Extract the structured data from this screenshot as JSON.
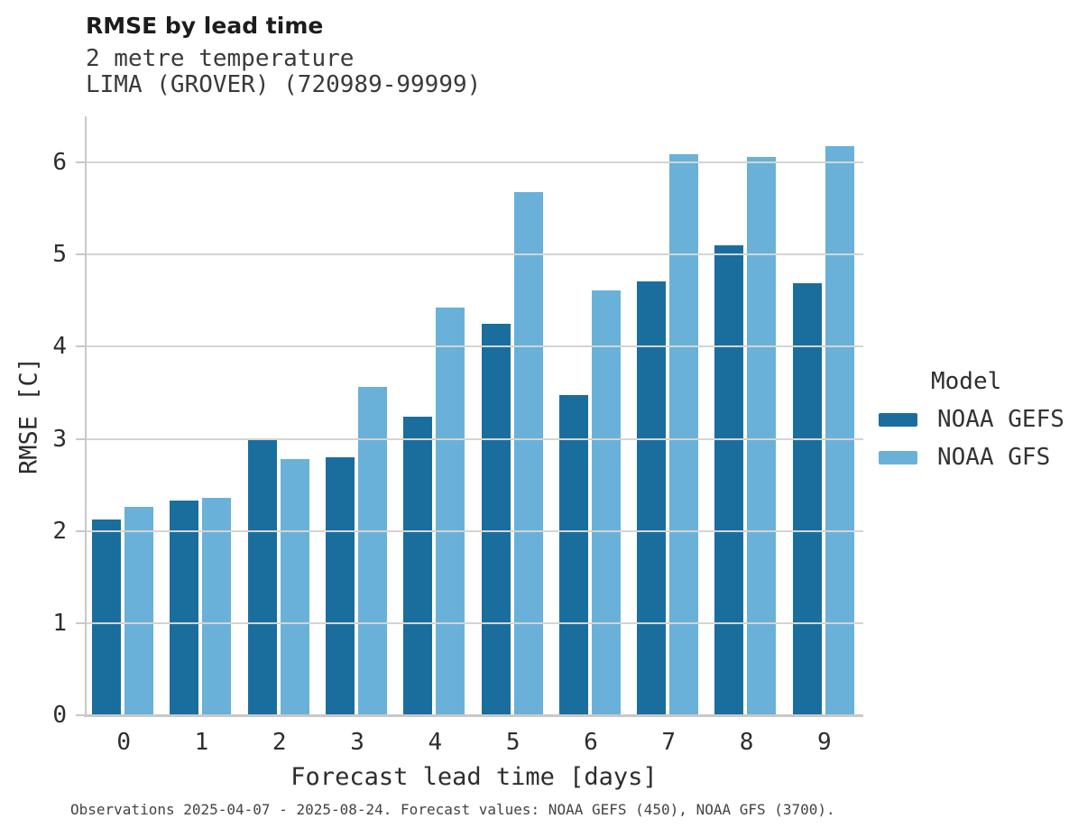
{
  "header": {
    "title": "RMSE by lead time",
    "subtitle_variable": "2 metre temperature",
    "subtitle_station": "LIMA (GROVER) (720989-99999)"
  },
  "chart_data": {
    "type": "bar",
    "title": "RMSE by lead time",
    "categories": [
      "0",
      "1",
      "2",
      "3",
      "4",
      "5",
      "6",
      "7",
      "8",
      "9"
    ],
    "series": [
      {
        "name": "NOAA GEFS",
        "color": "#1a6e9e",
        "values": [
          2.12,
          2.33,
          3.0,
          2.8,
          3.24,
          4.25,
          3.48,
          4.71,
          5.1,
          4.69
        ]
      },
      {
        "name": "NOAA GFS",
        "color": "#69b1d8",
        "values": [
          2.26,
          2.36,
          2.78,
          3.56,
          4.42,
          5.68,
          4.61,
          6.09,
          6.06,
          6.18
        ]
      }
    ],
    "xlabel": "Forecast lead time [days]",
    "ylabel": "RMSE [C]",
    "ylim": [
      0,
      6.5
    ],
    "yticks": [
      0,
      1,
      2,
      3,
      4,
      5,
      6
    ],
    "grid": true,
    "legend_title": "Model",
    "legend_position": "right"
  },
  "footer": {
    "note": "Observations 2025-04-07 - 2025-08-24. Forecast values: NOAA GEFS (450), NOAA GFS (3700)."
  }
}
